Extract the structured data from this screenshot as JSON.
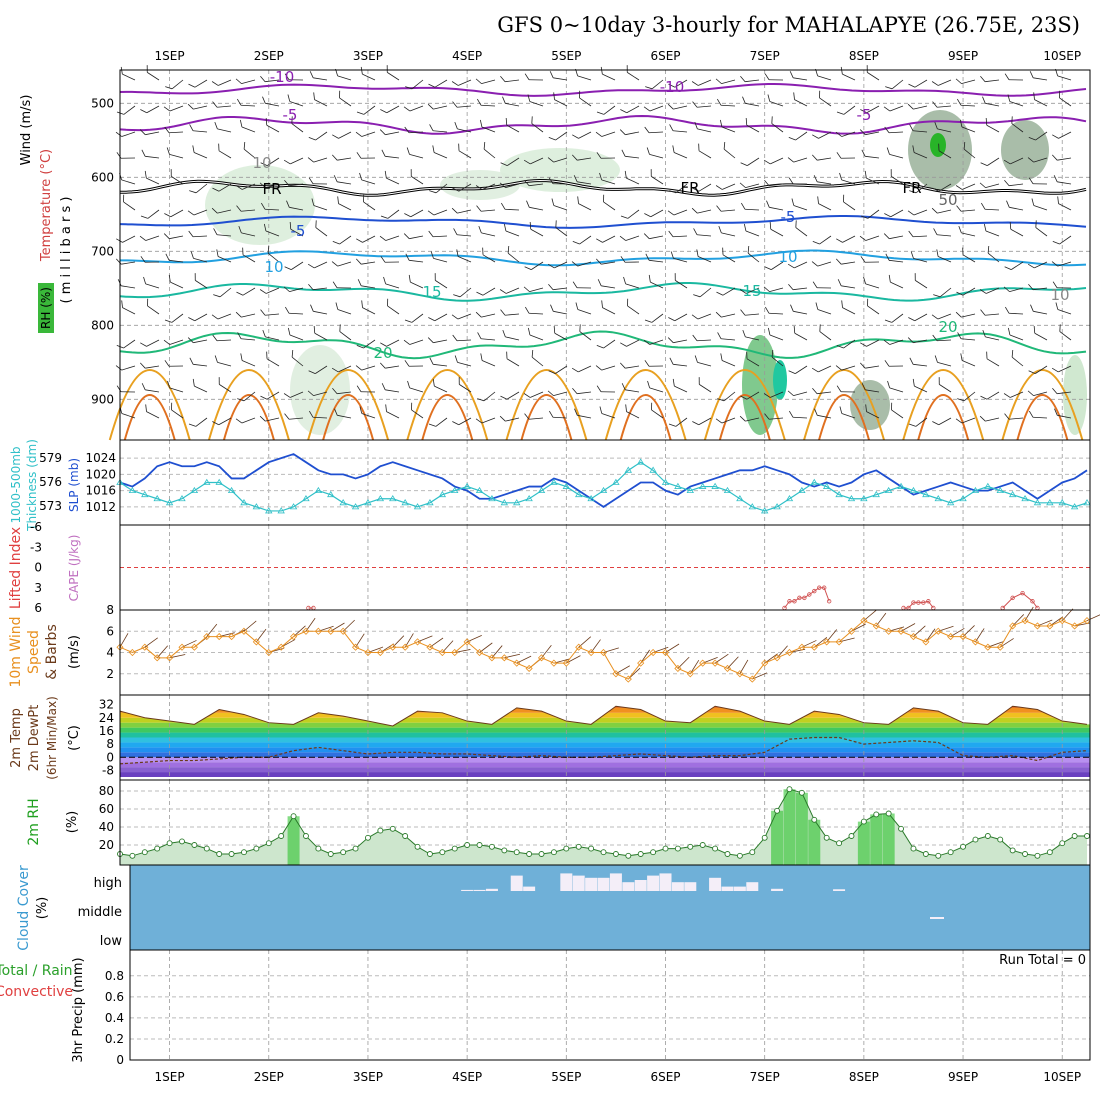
{
  "title": "GFS 0~10day 3-hourly for MAHALAPYE (26.75E, 23S)",
  "date_ticks": [
    "1SEP",
    "2SEP",
    "3SEP",
    "4SEP",
    "5SEP",
    "6SEP",
    "7SEP",
    "8SEP",
    "9SEP",
    "10SEP"
  ],
  "colors": {
    "purple": "#8a1fb0",
    "blue": "#1f4fd0",
    "lightblue": "#22a0e0",
    "teal": "#1ab8a0",
    "green": "#20b878",
    "orange": "#e8a020",
    "darkorange": "#e07020",
    "magenta": "#e0106a",
    "cape": "#d05050",
    "wind10m": "#e89020",
    "cloudbg": "#6fb0d8",
    "cloudfill": "#f4eef8",
    "rh_green": "#20c020"
  },
  "panels": {
    "upper": {
      "label_wind": "Wind (m/s)",
      "label_temp": "Temperature (°C)",
      "label_rh": "RH (%)",
      "label_mb": "( m i l l i b a r s )",
      "yticks": [
        "500",
        "600",
        "700",
        "800",
        "900"
      ],
      "contour_labels": [
        "-10",
        "-10",
        "-5",
        "-5",
        "FR",
        "FR",
        "FR",
        "-5",
        "-5",
        "10",
        "10",
        "15",
        "15",
        "20",
        "20",
        "50",
        "10",
        "10"
      ]
    },
    "thickness": {
      "label_left": "1000-500mb",
      "label_left2": "Thickness (dm)",
      "label_right": "SLP (mb)",
      "yticks_left": [
        "579",
        "576",
        "573"
      ],
      "yticks_right": [
        "1024",
        "1020",
        "1016",
        "1012"
      ]
    },
    "cape": {
      "label_li": "Lifted Index",
      "label_cape": "CAPE (J/kg)",
      "yticks": [
        "-6",
        "-3",
        "0",
        "3",
        "6"
      ]
    },
    "wind10": {
      "label1": "10m Wind",
      "label2": "Speed",
      "label3": "& Barbs",
      "label4": "(m/s)",
      "yticks": [
        "8",
        "6",
        "4",
        "2"
      ]
    },
    "temp2m": {
      "label1": "2m Temp",
      "label2": "2m DewPt",
      "label3": "(6hr Min/Max)",
      "label4": "(°C)",
      "yticks": [
        "32",
        "24",
        "16",
        "8",
        "0",
        "-8"
      ]
    },
    "rh2m": {
      "label1": "2m RH",
      "label2": "(%)",
      "yticks": [
        "80",
        "60",
        "40",
        "20"
      ]
    },
    "cloud": {
      "label1": "Cloud Cover",
      "label2": "(%)",
      "levels": [
        "high",
        "middle",
        "low"
      ]
    },
    "precip": {
      "label1": "Total / Rain",
      "label2": "Convective",
      "label3": "3hr Precip (mm)",
      "yticks": [
        "0.8",
        "0.6",
        "0.4",
        "0.2",
        "0"
      ],
      "run_total": "Run Total = 0"
    }
  },
  "chart_data": [
    {
      "type": "line",
      "name": "1000-500mb thickness (dm) and sea level pressure (mb)",
      "x_unit": "day",
      "x": [
        0.5,
        0.625,
        0.75,
        0.875,
        1,
        1.125,
        1.25,
        1.375,
        1.5,
        1.625,
        1.75,
        1.875,
        2,
        2.125,
        2.25,
        2.375,
        2.5,
        2.625,
        2.75,
        2.875,
        3,
        3.125,
        3.25,
        3.375,
        3.5,
        3.625,
        3.75,
        3.875,
        4,
        4.125,
        4.25,
        4.375,
        4.5,
        4.625,
        4.75,
        4.875,
        5,
        5.125,
        5.25,
        5.375,
        5.5,
        5.625,
        5.75,
        5.875,
        6,
        6.125,
        6.25,
        6.375,
        6.5,
        6.625,
        6.75,
        6.875,
        7,
        7.125,
        7.25,
        7.375,
        7.5,
        7.625,
        7.75,
        7.875,
        8,
        8.125,
        8.25,
        8.375,
        8.5,
        8.625,
        8.75,
        8.875,
        9,
        9.125,
        9.25,
        9.375,
        9.5,
        9.625,
        9.75,
        9.875,
        10,
        10.125,
        10.25
      ],
      "series": [
        {
          "values": [
            1018,
            1017,
            1019,
            1022,
            1023,
            1022,
            1022,
            1023,
            1022,
            1019,
            1019,
            1021,
            1023,
            1024,
            1025,
            1023,
            1021,
            1020,
            1020,
            1019,
            1020,
            1022,
            1023,
            1022,
            1021,
            1020,
            1019,
            1017,
            1016,
            1014,
            1014,
            1015,
            1016,
            1017,
            1017,
            1019,
            1018,
            1016,
            1014,
            1012,
            1014,
            1016,
            1018,
            1018,
            1016,
            1015,
            1017,
            1018,
            1019,
            1020,
            1021,
            1021,
            1022,
            1021,
            1020,
            1018,
            1017,
            1018,
            1017,
            1018,
            1020,
            1021,
            1019,
            1017,
            1015,
            1016,
            1017,
            1018,
            1017,
            1016,
            1016,
            1017,
            1018,
            1016,
            1014,
            1016,
            1018,
            1019,
            1021
          ]
        },
        {
          "values": [
            1018,
            1016,
            1015,
            1014,
            1013,
            1014,
            1016,
            1018,
            1018,
            1016,
            1013,
            1012,
            1011,
            1011,
            1012,
            1014,
            1016,
            1015,
            1013,
            1012,
            1013,
            1014,
            1014,
            1013,
            1012,
            1013,
            1015,
            1016,
            1017,
            1016,
            1014,
            1013,
            1013,
            1014,
            1016,
            1018,
            1017,
            1015,
            1014,
            1016,
            1018,
            1021,
            1023,
            1021,
            1018,
            1017,
            1016,
            1017,
            1017,
            1016,
            1014,
            1012,
            1011,
            1012,
            1014,
            1016,
            1018,
            1017,
            1015,
            1014,
            1014,
            1015,
            1016,
            1017,
            1016,
            1015,
            1014,
            1013,
            1014,
            1016,
            1017,
            1016,
            1015,
            1014,
            1013,
            1013,
            1013,
            1012,
            1013
          ]
        }
      ],
      "yticks_thickness": [
        573,
        576,
        579
      ],
      "yticks_slp": [
        1012,
        1016,
        1020,
        1024
      ]
    },
    {
      "type": "line",
      "name": "Lifted Index",
      "x": [
        2.4,
        2.45,
        7.2,
        7.25,
        7.3,
        7.35,
        7.4,
        7.45,
        7.5,
        7.55,
        7.6,
        7.65,
        8.4,
        8.45,
        8.5,
        8.55,
        8.6,
        8.65,
        8.7,
        9.4,
        9.5,
        9.6,
        9.7,
        9.75
      ],
      "values": [
        6,
        6,
        6,
        5,
        5,
        4.5,
        4.5,
        4,
        3.5,
        3,
        3,
        5,
        6,
        6,
        5.2,
        5.2,
        5.2,
        5,
        6,
        6,
        4.5,
        3.8,
        5,
        6
      ],
      "ylim": [
        -6,
        6
      ]
    },
    {
      "type": "line",
      "name": "10m Wind Speed",
      "x": [
        0.5,
        0.625,
        0.75,
        0.875,
        1,
        1.125,
        1.25,
        1.375,
        1.5,
        1.625,
        1.75,
        1.875,
        2,
        2.125,
        2.25,
        2.375,
        2.5,
        2.625,
        2.75,
        2.875,
        3,
        3.125,
        3.25,
        3.375,
        3.5,
        3.625,
        3.75,
        3.875,
        4,
        4.125,
        4.25,
        4.375,
        4.5,
        4.625,
        4.75,
        4.875,
        5,
        5.125,
        5.25,
        5.375,
        5.5,
        5.625,
        5.75,
        5.875,
        6,
        6.125,
        6.25,
        6.375,
        6.5,
        6.625,
        6.75,
        6.875,
        7,
        7.125,
        7.25,
        7.375,
        7.5,
        7.625,
        7.75,
        7.875,
        8,
        8.125,
        8.25,
        8.375,
        8.5,
        8.625,
        8.75,
        8.875,
        9,
        9.125,
        9.25,
        9.375,
        9.5,
        9.625,
        9.75,
        9.875,
        10,
        10.125,
        10.25
      ],
      "values": [
        4.5,
        4,
        4.5,
        3.5,
        3.5,
        4.5,
        4.5,
        5.5,
        5.5,
        5.5,
        6,
        5,
        4,
        4.5,
        5.5,
        6,
        6,
        6,
        6,
        4.5,
        4,
        4,
        4.5,
        4.5,
        5,
        4.5,
        4,
        4,
        5,
        4,
        3.5,
        3.5,
        3,
        2.5,
        3.5,
        3,
        3,
        4.5,
        4,
        4,
        2,
        1.5,
        3,
        4,
        4,
        2.5,
        2,
        3,
        3,
        2.5,
        2,
        1.5,
        3,
        3.5,
        4,
        4.5,
        4.5,
        5,
        5,
        6,
        7,
        6.5,
        6,
        6,
        5.5,
        5,
        6,
        5.5,
        5.5,
        5,
        4.5,
        4.5,
        6.5,
        7,
        6.5,
        6.5,
        7,
        6.5,
        7
      ],
      "ylim": [
        0,
        8
      ]
    },
    {
      "type": "area",
      "name": "2m Temp / DewPt",
      "x": [
        0.5,
        0.75,
        1,
        1.25,
        1.5,
        1.75,
        2,
        2.25,
        2.5,
        2.75,
        3,
        3.25,
        3.5,
        3.75,
        4,
        4.25,
        4.5,
        4.75,
        5,
        5.25,
        5.5,
        5.75,
        6,
        6.25,
        6.5,
        6.75,
        7,
        7.25,
        7.5,
        7.75,
        8,
        8.25,
        8.5,
        8.75,
        9,
        9.25,
        9.5,
        9.75,
        10,
        10.25
      ],
      "series": [
        {
          "values": [
            28,
            24,
            22,
            20,
            29,
            26,
            21,
            20,
            27,
            25,
            22,
            19,
            28,
            27,
            22,
            20,
            30,
            28,
            22,
            20,
            31,
            29,
            22,
            21,
            31,
            28,
            22,
            20,
            28,
            26,
            21,
            20,
            30,
            28,
            21,
            20,
            31,
            29,
            22,
            20
          ]
        },
        {
          "values": [
            -4,
            -3,
            -2,
            -2,
            -1,
            0,
            0,
            4,
            6,
            4,
            2,
            3,
            3,
            2,
            2,
            1,
            0,
            1,
            0,
            0,
            1,
            2,
            1,
            0,
            1,
            1,
            3,
            11,
            12,
            12,
            8,
            9,
            10,
            9,
            1,
            0,
            1,
            -2,
            3,
            4
          ]
        }
      ],
      "ylim": [
        -12,
        36
      ]
    },
    {
      "type": "area",
      "name": "2m RH",
      "x": [
        0.5,
        0.625,
        0.75,
        0.875,
        1,
        1.125,
        1.25,
        1.375,
        1.5,
        1.625,
        1.75,
        1.875,
        2,
        2.125,
        2.25,
        2.375,
        2.5,
        2.625,
        2.75,
        2.875,
        3,
        3.125,
        3.25,
        3.375,
        3.5,
        3.625,
        3.75,
        3.875,
        4,
        4.125,
        4.25,
        4.375,
        4.5,
        4.625,
        4.75,
        4.875,
        5,
        5.125,
        5.25,
        5.375,
        5.5,
        5.625,
        5.75,
        5.875,
        6,
        6.125,
        6.25,
        6.375,
        6.5,
        6.625,
        6.75,
        6.875,
        7,
        7.125,
        7.25,
        7.375,
        7.5,
        7.625,
        7.75,
        7.875,
        8,
        8.125,
        8.25,
        8.375,
        8.5,
        8.625,
        8.75,
        8.875,
        9,
        9.125,
        9.25,
        9.375,
        9.5,
        9.625,
        9.75,
        9.875,
        10,
        10.125,
        10.25
      ],
      "values": [
        10,
        8,
        12,
        16,
        22,
        24,
        20,
        16,
        10,
        10,
        12,
        16,
        22,
        30,
        52,
        30,
        16,
        10,
        12,
        16,
        28,
        36,
        38,
        30,
        18,
        10,
        12,
        16,
        20,
        20,
        18,
        14,
        12,
        10,
        10,
        12,
        16,
        18,
        16,
        12,
        10,
        8,
        10,
        12,
        16,
        16,
        18,
        20,
        16,
        10,
        8,
        12,
        28,
        58,
        82,
        78,
        48,
        28,
        22,
        30,
        46,
        54,
        55,
        38,
        16,
        10,
        8,
        12,
        18,
        26,
        30,
        26,
        14,
        10,
        8,
        12,
        22,
        30,
        30
      ],
      "ylim": [
        0,
        90
      ]
    },
    {
      "type": "bar",
      "name": "Cloud Cover high",
      "x": [
        4.0,
        4.125,
        4.25,
        4.5,
        4.625,
        5.0,
        5.125,
        5.25,
        5.375,
        5.5,
        5.625,
        5.75,
        5.875,
        6.0,
        6.125,
        6.25,
        6.5,
        6.625,
        6.75,
        6.875,
        7.125,
        7.75
      ],
      "values": [
        5,
        5,
        10,
        70,
        20,
        80,
        70,
        60,
        60,
        80,
        40,
        50,
        70,
        80,
        40,
        40,
        60,
        20,
        20,
        40,
        10,
        8
      ],
      "ylim": [
        0,
        100
      ]
    },
    {
      "type": "bar",
      "name": "3hr Precip",
      "x": [],
      "values": [],
      "ylim": [
        0,
        1
      ]
    }
  ]
}
